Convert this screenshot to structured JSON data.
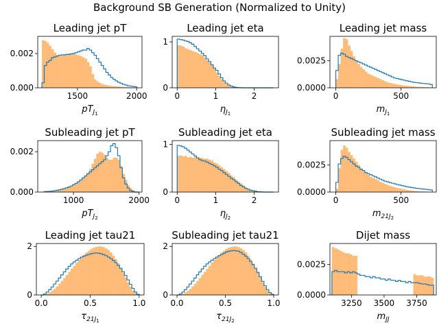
{
  "suptitle": "Background SB Generation (Normalized to Unity)",
  "colors": {
    "generated": "#ffbb78",
    "reference": "#1f77b4"
  },
  "chart_data": [
    {
      "type": "histogram",
      "title": "Leading jet pT",
      "xlabel": "pT_{J_1}",
      "xlim": [
        1165,
        2045
      ],
      "ylim": [
        0,
        0.003
      ],
      "xticks": [
        {
          "v": 1500,
          "t": "1500"
        },
        {
          "v": 2000,
          "t": "2000"
        }
      ],
      "yticks": [
        {
          "v": 0,
          "t": "0.000"
        },
        {
          "v": 0.002,
          "t": "0.002"
        }
      ],
      "bins": [
        1200,
        2000
      ],
      "nbins": 40,
      "gen": [
        0.00278,
        0.00272,
        0.00262,
        0.00245,
        0.00225,
        0.00205,
        0.0019,
        0.00185,
        0.0019,
        0.00195,
        0.00195,
        0.002,
        0.00198,
        0.002,
        0.00195,
        0.0019,
        0.00185,
        0.00178,
        0.0017,
        0.0015,
        0.00125,
        0.0008,
        0.00048,
        0.00036,
        0.00028,
        0.00022,
        0.00018,
        0.00015,
        0.00012,
        0.0001,
        9e-05,
        8e-05,
        7e-05,
        6e-05,
        5e-05,
        4e-05,
        3e-05,
        3e-05,
        2e-05,
        2e-05
      ],
      "ref": [
        0.0003,
        0.0013,
        0.0015,
        0.0016,
        0.00175,
        0.0018,
        0.00185,
        0.0019,
        0.00192,
        0.00192,
        0.00195,
        0.00195,
        0.00198,
        0.002,
        0.00205,
        0.0021,
        0.00215,
        0.0022,
        0.0022,
        0.0023,
        0.0022,
        0.00205,
        0.0019,
        0.0017,
        0.0015,
        0.0013,
        0.0011,
        0.0009,
        0.00075,
        0.0006,
        0.0005,
        0.0004,
        0.00032,
        0.00026,
        0.0002,
        0.00016,
        0.00012,
        0.0001,
        8e-05,
        6e-05
      ]
    },
    {
      "type": "histogram",
      "title": "Leading jet eta",
      "xlabel": "η_{J_1}",
      "xlim": [
        -0.13,
        2.63
      ],
      "ylim": [
        0,
        1.12
      ],
      "xticks": [
        {
          "v": 0,
          "t": "0"
        },
        {
          "v": 1,
          "t": "1"
        },
        {
          "v": 2,
          "t": "2"
        }
      ],
      "yticks": [
        {
          "v": 0,
          "t": "0"
        },
        {
          "v": 1,
          "t": "1"
        }
      ],
      "bins": [
        0,
        2.5
      ],
      "nbins": 40,
      "gen": [
        0.93,
        0.92,
        0.9,
        0.86,
        0.84,
        0.82,
        0.8,
        0.78,
        0.76,
        0.73,
        0.71,
        0.66,
        0.6,
        0.55,
        0.49,
        0.42,
        0.33,
        0.26,
        0.19,
        0.13,
        0.08,
        0.05,
        0.03,
        0.02,
        0.01,
        0.005,
        0.002,
        0,
        0,
        0,
        0,
        0,
        0,
        0,
        0,
        0,
        0,
        0,
        0,
        0
      ],
      "ref": [
        1.06,
        1.05,
        1.04,
        1.02,
        1.01,
        0.98,
        0.95,
        0.9,
        0.85,
        0.8,
        0.75,
        0.7,
        0.63,
        0.57,
        0.5,
        0.43,
        0.38,
        0.3,
        0.22,
        0.15,
        0.1,
        0.06,
        0.04,
        0.02,
        0.01,
        0.005,
        0.002,
        0,
        0,
        0,
        0,
        0,
        0,
        0,
        0,
        0,
        0,
        0,
        0,
        0
      ]
    },
    {
      "type": "histogram",
      "title": "Leading jet mass",
      "xlabel": "m_{J_1}",
      "xlim": [
        -45,
        770
      ],
      "ylim": [
        0,
        0.00475
      ],
      "xticks": [
        {
          "v": 0,
          "t": "0"
        },
        {
          "v": 500,
          "t": "500"
        }
      ],
      "yticks": [
        {
          "v": 0,
          "t": "0.0000"
        },
        {
          "v": 0.0025,
          "t": "0.0025"
        }
      ],
      "bins": [
        0,
        740
      ],
      "nbins": 40,
      "gen": [
        0.0008,
        0.0022,
        0.0036,
        0.0046,
        0.0045,
        0.0039,
        0.0034,
        0.0029,
        0.0025,
        0.0022,
        0.0019,
        0.0017,
        0.0015,
        0.0013,
        0.0012,
        0.0011,
        0.001,
        0.0009,
        0.0008,
        0.0007,
        0.0006,
        0.0005,
        0.00045,
        0.0004,
        0.00035,
        0.0003,
        0.00027,
        0.00024,
        0.00021,
        0.00018,
        0.00016,
        0.00014,
        0.00012,
        0.0001,
        9e-05,
        8e-05,
        7e-05,
        6e-05,
        5e-05,
        4e-05
      ],
      "ref": [
        0.0016,
        0.003,
        0.0032,
        0.0031,
        0.0029,
        0.0028,
        0.0027,
        0.0026,
        0.0025,
        0.0024,
        0.0023,
        0.0022,
        0.0021,
        0.002,
        0.0019,
        0.0018,
        0.0017,
        0.0016,
        0.0015,
        0.0014,
        0.0013,
        0.0012,
        0.0011,
        0.001,
        0.0009,
        0.00085,
        0.0008,
        0.00075,
        0.0007,
        0.00065,
        0.0006,
        0.00055,
        0.0005,
        0.00048,
        0.00045,
        0.00042,
        0.0004,
        0.00038,
        0.00036,
        0.0003
      ]
    },
    {
      "type": "histogram",
      "title": "Subleading jet pT",
      "xlabel": "pT_{J_2}",
      "xlim": [
        455,
        2045
      ],
      "ylim": [
        0,
        0.00255
      ],
      "xticks": [
        {
          "v": 1000,
          "t": "1000"
        },
        {
          "v": 2000,
          "t": "2000"
        }
      ],
      "yticks": [
        {
          "v": 0,
          "t": "0.000"
        },
        {
          "v": 0.002,
          "t": "0.002"
        }
      ],
      "bins": [
        550,
        2000
      ],
      "nbins": 40,
      "gen": [
        2e-05,
        3e-05,
        4e-05,
        5e-05,
        7e-05,
        9e-05,
        0.00011,
        0.00013,
        0.00016,
        0.0002,
        0.00024,
        0.00028,
        0.00033,
        0.0004,
        0.00048,
        0.00057,
        0.00068,
        0.0008,
        0.00095,
        0.00115,
        0.0014,
        0.00165,
        0.0019,
        0.002,
        0.00195,
        0.00185,
        0.0017,
        0.0016,
        0.0016,
        0.0017,
        0.0017,
        0.0016,
        0.0013,
        0.0009,
        0.0006,
        0.00035,
        0.0002,
        0.0001,
        3e-05,
        0
      ],
      "ref": [
        2e-05,
        3e-05,
        4e-05,
        5e-05,
        7e-05,
        9e-05,
        0.00011,
        0.00014,
        0.00017,
        0.00021,
        0.00025,
        0.0003,
        0.00036,
        0.00043,
        0.00051,
        0.0006,
        0.0007,
        0.0008,
        0.0009,
        0.001,
        0.0011,
        0.0012,
        0.0013,
        0.0014,
        0.0015,
        0.0016,
        0.0018,
        0.002,
        0.0023,
        0.0024,
        0.0022,
        0.0018,
        0.0012,
        0.0007,
        0.0004,
        0.0002,
        8e-05,
        3e-05,
        0,
        0
      ]
    },
    {
      "type": "histogram",
      "title": "Subleading jet eta",
      "xlabel": "η_{J_2}",
      "xlim": [
        -0.13,
        2.63
      ],
      "ylim": [
        0,
        1.08
      ],
      "xticks": [
        {
          "v": 0,
          "t": "0"
        },
        {
          "v": 1,
          "t": "1"
        },
        {
          "v": 2,
          "t": "2"
        }
      ],
      "yticks": [
        {
          "v": 0,
          "t": "0"
        },
        {
          "v": 1,
          "t": "1"
        }
      ],
      "bins": [
        0,
        2.5
      ],
      "nbins": 40,
      "gen": [
        0.76,
        0.77,
        0.75,
        0.76,
        0.73,
        0.74,
        0.72,
        0.74,
        0.72,
        0.72,
        0.71,
        0.7,
        0.7,
        0.68,
        0.66,
        0.62,
        0.6,
        0.56,
        0.52,
        0.48,
        0.44,
        0.4,
        0.35,
        0.31,
        0.26,
        0.22,
        0.18,
        0.14,
        0.1,
        0.07,
        0.05,
        0.03,
        0.02,
        0.01,
        0.005,
        0.002,
        0,
        0,
        0,
        0
      ],
      "ref": [
        0.98,
        0.97,
        0.95,
        0.92,
        0.88,
        0.84,
        0.8,
        0.76,
        0.72,
        0.68,
        0.66,
        0.65,
        0.63,
        0.6,
        0.58,
        0.55,
        0.52,
        0.48,
        0.45,
        0.41,
        0.37,
        0.33,
        0.29,
        0.26,
        0.22,
        0.18,
        0.14,
        0.11,
        0.08,
        0.06,
        0.04,
        0.03,
        0.02,
        0.01,
        0.005,
        0.002,
        0,
        0,
        0,
        0
      ]
    },
    {
      "type": "histogram",
      "title": "Subleading jet mass",
      "xlabel": "m_{21J_2}",
      "xlim": [
        -45,
        770
      ],
      "ylim": [
        0,
        0.00475
      ],
      "xticks": [
        {
          "v": 0,
          "t": "0"
        },
        {
          "v": 500,
          "t": "500"
        }
      ],
      "yticks": [
        {
          "v": 0,
          "t": "0.0000"
        },
        {
          "v": 0.0025,
          "t": "0.0025"
        }
      ],
      "bins": [
        0,
        740
      ],
      "nbins": 40,
      "gen": [
        0.0003,
        0.0022,
        0.0039,
        0.0043,
        0.0041,
        0.0037,
        0.0034,
        0.0031,
        0.0028,
        0.0025,
        0.0022,
        0.002,
        0.0018,
        0.0016,
        0.0014,
        0.0013,
        0.0012,
        0.0011,
        0.00095,
        0.00085,
        0.00075,
        0.00065,
        0.00058,
        0.0005,
        0.00044,
        0.00038,
        0.00033,
        0.00028,
        0.00024,
        0.0002,
        0.00017,
        0.00014,
        0.00012,
        0.0001,
        8e-05,
        7e-05,
        6e-05,
        5e-05,
        4e-05,
        3e-05
      ],
      "ref": [
        0.0009,
        0.0026,
        0.0031,
        0.0033,
        0.0032,
        0.003,
        0.0028,
        0.0026,
        0.0024,
        0.0023,
        0.0021,
        0.002,
        0.0018,
        0.0017,
        0.0016,
        0.0015,
        0.0014,
        0.0013,
        0.0012,
        0.0011,
        0.001,
        0.00095,
        0.00088,
        0.00082,
        0.00076,
        0.0007,
        0.00065,
        0.0006,
        0.00055,
        0.0005,
        0.00046,
        0.00042,
        0.00038,
        0.00035,
        0.00032,
        0.0003,
        0.00027,
        0.00025,
        0.00022,
        0.0002
      ]
    },
    {
      "type": "histogram",
      "title": "Leading jet tau21",
      "xlabel": "τ_{21J_1}",
      "xlim": [
        -0.05,
        1.05
      ],
      "ylim": [
        0,
        2.12
      ],
      "xticks": [
        {
          "v": 0,
          "t": "0.0"
        },
        {
          "v": 0.5,
          "t": "0.5"
        },
        {
          "v": 1,
          "t": "1.0"
        }
      ],
      "yticks": [
        {
          "v": 0,
          "t": "0"
        },
        {
          "v": 2,
          "t": "2"
        }
      ],
      "bins": [
        0,
        1
      ],
      "nbins": 40,
      "gen": [
        0,
        0.02,
        0.05,
        0.1,
        0.17,
        0.25,
        0.35,
        0.46,
        0.58,
        0.7,
        0.82,
        0.95,
        1.08,
        1.2,
        1.33,
        1.45,
        1.55,
        1.65,
        1.75,
        1.82,
        1.9,
        1.95,
        1.98,
        2.0,
        2.0,
        1.97,
        1.92,
        1.85,
        1.75,
        1.62,
        1.47,
        1.3,
        1.12,
        0.92,
        0.72,
        0.52,
        0.34,
        0.18,
        0.08,
        0.02
      ],
      "ref": [
        0,
        0.04,
        0.12,
        0.22,
        0.33,
        0.45,
        0.57,
        0.7,
        0.83,
        0.95,
        1.07,
        1.18,
        1.28,
        1.36,
        1.43,
        1.5,
        1.56,
        1.6,
        1.64,
        1.67,
        1.7,
        1.72,
        1.73,
        1.72,
        1.7,
        1.66,
        1.62,
        1.56,
        1.5,
        1.42,
        1.33,
        1.22,
        1.1,
        0.96,
        0.8,
        0.62,
        0.44,
        0.27,
        0.12,
        0.03
      ]
    },
    {
      "type": "histogram",
      "title": "Subleading jet tau21",
      "xlabel": "τ_{21J_2}",
      "xlim": [
        -0.05,
        1.05
      ],
      "ylim": [
        0,
        2.12
      ],
      "xticks": [
        {
          "v": 0,
          "t": "0.0"
        },
        {
          "v": 0.5,
          "t": "0.5"
        },
        {
          "v": 1,
          "t": "1.0"
        }
      ],
      "yticks": [
        {
          "v": 0,
          "t": "0"
        },
        {
          "v": 2,
          "t": "2"
        }
      ],
      "bins": [
        0,
        1
      ],
      "nbins": 40,
      "gen": [
        0,
        0.02,
        0.05,
        0.1,
        0.17,
        0.25,
        0.35,
        0.46,
        0.58,
        0.7,
        0.82,
        0.95,
        1.08,
        1.2,
        1.33,
        1.45,
        1.55,
        1.65,
        1.75,
        1.82,
        1.9,
        1.95,
        1.98,
        2.0,
        2.0,
        1.97,
        1.92,
        1.85,
        1.75,
        1.62,
        1.47,
        1.3,
        1.12,
        0.92,
        0.72,
        0.52,
        0.34,
        0.18,
        0.08,
        0.02
      ],
      "ref": [
        0,
        0.04,
        0.12,
        0.22,
        0.33,
        0.45,
        0.57,
        0.7,
        0.83,
        0.95,
        1.07,
        1.18,
        1.28,
        1.36,
        1.43,
        1.5,
        1.56,
        1.62,
        1.67,
        1.72,
        1.77,
        1.8,
        1.82,
        1.83,
        1.82,
        1.8,
        1.75,
        1.68,
        1.6,
        1.5,
        1.38,
        1.25,
        1.1,
        0.93,
        0.75,
        0.56,
        0.38,
        0.22,
        0.1,
        0.03
      ]
    },
    {
      "type": "histogram",
      "title": "Dijet mass",
      "xlabel": "m_{JJ}",
      "xlim": [
        3085,
        3900
      ],
      "ylim": [
        0,
        0.0042
      ],
      "xticks": [
        {
          "v": 3250,
          "t": "3250"
        },
        {
          "v": 3500,
          "t": "3500"
        },
        {
          "v": 3750,
          "t": "3750"
        }
      ],
      "yticks": [
        {
          "v": 0,
          "t": "0.0000"
        },
        {
          "v": 0.0025,
          "t": "0.0025"
        }
      ],
      "bins": [
        3100,
        3880
      ],
      "nbins": 40,
      "gen": [
        0.0039,
        0.0038,
        0.0037,
        0.0036,
        0.0035,
        0.0034,
        0.0034,
        0.0033,
        0.0032,
        0.0032,
        0,
        0,
        0,
        0,
        0,
        0,
        0,
        0,
        0,
        0,
        0,
        0,
        0,
        0,
        0,
        0,
        0,
        0,
        0,
        0,
        0,
        0,
        0.0017,
        0.0016,
        0.0016,
        0.0016,
        0.0015,
        0.0015,
        0.0015,
        0.0014
      ],
      "ref": [
        0.0019,
        0.002,
        0.0019,
        0.0019,
        0.0019,
        0.0018,
        0.0019,
        0.0018,
        0.0019,
        0.0018,
        0.0017,
        0.0016,
        0.0016,
        0.0015,
        0.0015,
        0.0014,
        0.0015,
        0.0014,
        0.0014,
        0.0013,
        0.0013,
        0.0012,
        0.0013,
        0.0012,
        0.0012,
        0.0011,
        0.0012,
        0.0011,
        0.0011,
        0.001,
        0.0011,
        0.001,
        0.001,
        0.001,
        0.00095,
        0.0009,
        0.0009,
        0.00085,
        0.0008,
        0.0008
      ]
    }
  ]
}
